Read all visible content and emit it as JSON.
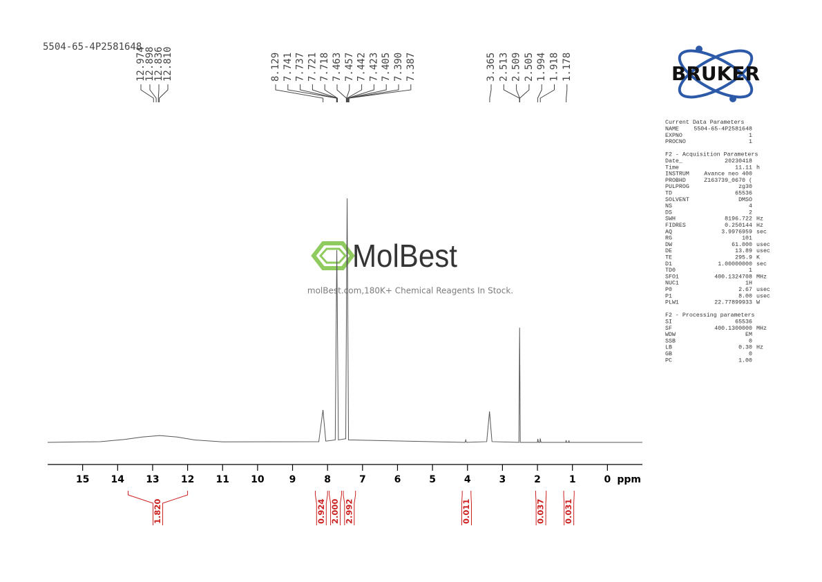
{
  "chart_data": {
    "type": "line",
    "title": "5504-65-4P2581648",
    "xlabel": "ppm",
    "xlim": [
      16,
      -1
    ],
    "ylim": [
      0,
      100
    ],
    "xticks": [
      15,
      14,
      13,
      12,
      11,
      10,
      9,
      8,
      7,
      6,
      5,
      4,
      3,
      2,
      1,
      0
    ],
    "color": "#555555",
    "x": [
      16,
      14.5,
      13.8,
      13.3,
      12.8,
      12.3,
      11.8,
      11,
      8.25,
      8.13,
      8.05,
      7.78,
      7.735,
      7.69,
      7.48,
      7.44,
      7.4,
      4.07,
      4.05,
      4.03,
      3.45,
      3.37,
      3.3,
      2.53,
      2.51,
      2.49,
      2.0,
      1.99,
      1.97,
      1.93,
      1.92,
      1.9,
      1.19,
      1.18,
      1.17,
      1.11,
      1.1,
      1.09,
      -1
    ],
    "values": [
      0,
      0.3,
      1.2,
      2.2,
      2.8,
      2.2,
      1.0,
      0.2,
      0.3,
      13.3,
      0.5,
      1.0,
      78.8,
      1.0,
      1.5,
      100,
      1.0,
      0,
      1.0,
      0,
      0.3,
      12.7,
      0.3,
      0,
      47,
      0,
      0,
      1.4,
      0,
      0,
      1.6,
      0,
      0,
      0.9,
      0,
      0,
      0.8,
      0,
      0
    ],
    "peak_label_groups": [
      [
        12.974,
        12.898,
        12.836,
        {
          "value": 12.81,
          "label": "12.810"
        }
      ],
      [
        8.129,
        7.741,
        7.737,
        7.721,
        7.718,
        7.463,
        7.457,
        7.442,
        7.423,
        7.405,
        {
          "value": 7.39,
          "label": "7.390"
        },
        7.387
      ],
      [
        3.365,
        2.513,
        2.509,
        2.505,
        1.994,
        1.918,
        1.178
      ]
    ],
    "integrals": {
      "ranges": [
        [
          13.7,
          12.0
        ],
        [
          8.35,
          8.0
        ],
        [
          7.95,
          7.6
        ],
        [
          7.55,
          7.2
        ],
        [
          4.15,
          3.9
        ],
        [
          2.05,
          1.75
        ],
        [
          1.25,
          0.95
        ]
      ],
      "values": [
        1.82,
        0.924,
        2,
        2.992,
        0.011,
        0.037,
        0.031
      ],
      "value_labels": [
        "1.820",
        "0.924",
        "2.000",
        "2.992",
        "0.011",
        "0.037",
        "0.031"
      ],
      "color": "#cc1f1f"
    }
  },
  "logo": "BRUKER",
  "watermark": {
    "name": "MolBest",
    "tagline": "molBest.com,180K+ Chemical Reagents In Stock."
  },
  "parameters": [
    {
      "title": "Current Data Parameters",
      "rows": [
        [
          "NAME",
          "5504-65-4P2581648"
        ],
        [
          "EXPNO",
          "1"
        ],
        [
          "PROCNO",
          "1"
        ]
      ]
    },
    {
      "title": "F2 - Acquisition Parameters",
      "rows": [
        [
          "Date_",
          "20230418"
        ],
        [
          "Time",
          "11.11",
          "h"
        ],
        [
          "INSTRUM",
          "Avance neo 400"
        ],
        [
          "PROBHD",
          "Z163739_0670 ("
        ],
        [
          "PULPROG",
          "zg30"
        ],
        [
          "TD",
          "65536"
        ],
        [
          "SOLVENT",
          "DMSO"
        ],
        [
          "NS",
          "4"
        ],
        [
          "DS",
          "2"
        ],
        [
          "SWH",
          "8196.722",
          "Hz"
        ],
        [
          "FIDRES",
          "0.250144",
          "Hz"
        ],
        [
          "AQ",
          "3.9976959",
          "sec"
        ],
        [
          "RG",
          "101"
        ],
        [
          "DW",
          "61.000",
          "usec"
        ],
        [
          "DE",
          "13.89",
          "usec"
        ],
        [
          "TE",
          "295.9",
          "K"
        ],
        [
          "D1",
          "1.00000000",
          "sec"
        ],
        [
          "TD0",
          "1"
        ],
        [
          "SFO1",
          "400.1324708",
          "MHz"
        ],
        [
          "NUC1",
          "1H"
        ],
        [
          "P0",
          "2.67",
          "usec"
        ],
        [
          "P1",
          "8.00",
          "usec"
        ],
        [
          "PLW1",
          "22.77899933",
          "W"
        ]
      ]
    },
    {
      "title": "F2 - Processing parameters",
      "rows": [
        [
          "SI",
          "65536"
        ],
        [
          "SF",
          "400.1300000",
          "MHz"
        ],
        [
          "WDW",
          "EM"
        ],
        [
          "SSB",
          "0"
        ],
        [
          "LB",
          "0.30",
          "Hz"
        ],
        [
          "GB",
          "0"
        ],
        [
          "PC",
          "1.00"
        ]
      ]
    }
  ]
}
